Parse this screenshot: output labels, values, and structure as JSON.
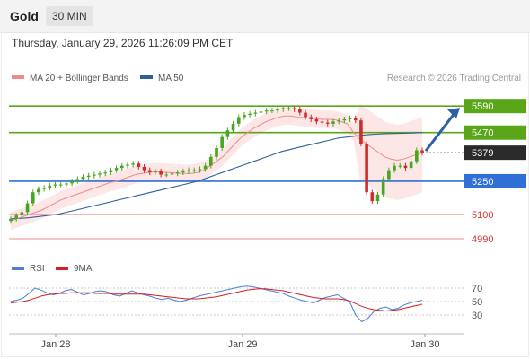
{
  "header": {
    "symbol": "Gold",
    "timeframe": "30 MIN",
    "datetime": "Thursday, January 29, 2026 11:26:09 PM CET"
  },
  "legend": {
    "items": [
      {
        "label": "MA 20 + Bollinger Bands",
        "color": "#f08a8a"
      },
      {
        "label": "MA 50",
        "color": "#2f5f9e"
      }
    ],
    "copyright": "Research © 2026 Trading Central"
  },
  "rsi_legend": {
    "items": [
      {
        "label": "RSI",
        "color": "#4a7fd4"
      },
      {
        "label": "9MA",
        "color": "#d32020"
      }
    ]
  },
  "colors": {
    "resistance": "#5aa619",
    "support": "#2f6fd6",
    "target": "#f28a8a",
    "last": "#2a2a2a",
    "arrow": "#2c5fa8",
    "up_candle": "#46a71e",
    "down_candle": "#d12a2a",
    "band": "#fbdcdc",
    "ma20": "#f08a8a",
    "ma50": "#2f5f9e"
  },
  "chart_data": [
    {
      "type": "candlestick",
      "title": "Gold",
      "timeframe": "30 MIN",
      "ylim": [
        4860,
        5680
      ],
      "x_ticks": [
        "Jan 28",
        "Jan 29",
        "Jan 30"
      ],
      "levels": [
        {
          "value": 5590,
          "label": "5590",
          "kind": "resistance"
        },
        {
          "value": 5470,
          "label": "5470",
          "kind": "resistance"
        },
        {
          "value": 5379,
          "label": "5379",
          "kind": "last"
        },
        {
          "value": 5250,
          "label": "5250",
          "kind": "support"
        },
        {
          "value": 5100,
          "label": "5100",
          "kind": "target"
        },
        {
          "value": 4990,
          "label": "4990",
          "kind": "target"
        }
      ],
      "series": [
        {
          "name": "Price",
          "close": [
            5080,
            5095,
            5110,
            5150,
            5200,
            5215,
            5220,
            5230,
            5235,
            5235,
            5240,
            5250,
            5260,
            5270,
            5275,
            5280,
            5285,
            5290,
            5300,
            5310,
            5320,
            5325,
            5330,
            5315,
            5300,
            5290,
            5295,
            5280,
            5280,
            5285,
            5290,
            5295,
            5300,
            5300,
            5305,
            5320,
            5360,
            5400,
            5450,
            5480,
            5510,
            5540,
            5550,
            5555,
            5560,
            5565,
            5570,
            5570,
            5575,
            5580,
            5580,
            5575,
            5560,
            5540,
            5530,
            5520,
            5515,
            5510,
            5520,
            5525,
            5530,
            5535,
            5525,
            5420,
            5200,
            5160,
            5190,
            5260,
            5300,
            5320,
            5320,
            5310,
            5340,
            5390,
            5379
          ]
        },
        {
          "name": "MA 20",
          "values": [
            5070,
            5080,
            5090,
            5100,
            5110,
            5120,
            5135,
            5150,
            5165,
            5175,
            5185,
            5195,
            5205,
            5215,
            5225,
            5235,
            5245,
            5250,
            5260,
            5270,
            5280,
            5285,
            5290,
            5292,
            5292,
            5290,
            5288,
            5286,
            5285,
            5285,
            5290,
            5300,
            5320,
            5340,
            5360,
            5390,
            5420,
            5450,
            5470,
            5490,
            5505,
            5520,
            5530,
            5540,
            5545,
            5545,
            5540,
            5538,
            5535,
            5533,
            5530,
            5530,
            5528,
            5520,
            5510,
            5470,
            5440,
            5420,
            5400,
            5380,
            5360,
            5350,
            5345,
            5350,
            5360,
            5370,
            5380
          ]
        },
        {
          "name": "MA 50",
          "values": [
            5080,
            5082,
            5085,
            5090,
            5095,
            5100,
            5110,
            5120,
            5130,
            5140,
            5150,
            5160,
            5170,
            5180,
            5190,
            5200,
            5210,
            5220,
            5230,
            5240,
            5250,
            5265,
            5280,
            5295,
            5310,
            5325,
            5340,
            5355,
            5370,
            5385,
            5395,
            5405,
            5415,
            5425,
            5435,
            5445,
            5450,
            5455,
            5460,
            5463,
            5465,
            5466,
            5467,
            5468,
            5470
          ]
        }
      ],
      "projection": {
        "from": 5379,
        "to": 5590
      }
    },
    {
      "type": "line",
      "title": "RSI",
      "ylim": [
        10,
        90
      ],
      "y_ticks": [
        70,
        50,
        30
      ],
      "series": [
        {
          "name": "RSI",
          "values": [
            50,
            52,
            55,
            62,
            70,
            67,
            63,
            60,
            62,
            66,
            68,
            64,
            60,
            62,
            65,
            66,
            64,
            60,
            58,
            62,
            66,
            63,
            60,
            58,
            55,
            53,
            55,
            52,
            50,
            52,
            55,
            58,
            60,
            62,
            64,
            66,
            68,
            70,
            72,
            73,
            72,
            70,
            68,
            66,
            64,
            62,
            58,
            55,
            52,
            50,
            48,
            52,
            56,
            58,
            60,
            55,
            50,
            30,
            20,
            25,
            35,
            40,
            42,
            38,
            40,
            45,
            48,
            50,
            52
          ]
        },
        {
          "name": "9MA",
          "values": [
            48,
            49,
            50,
            52,
            55,
            58,
            60,
            61,
            62,
            62,
            63,
            63,
            63,
            63,
            62,
            62,
            62,
            61,
            61,
            61,
            61,
            61,
            61,
            60,
            59,
            58,
            57,
            56,
            55,
            54,
            54,
            54,
            55,
            56,
            57,
            59,
            61,
            63,
            65,
            67,
            68,
            69,
            69,
            68,
            67,
            66,
            64,
            62,
            60,
            58,
            56,
            55,
            54,
            54,
            54,
            53,
            51,
            47,
            43,
            40,
            38,
            37,
            36,
            37,
            38,
            40,
            42,
            44,
            46
          ]
        }
      ]
    }
  ]
}
